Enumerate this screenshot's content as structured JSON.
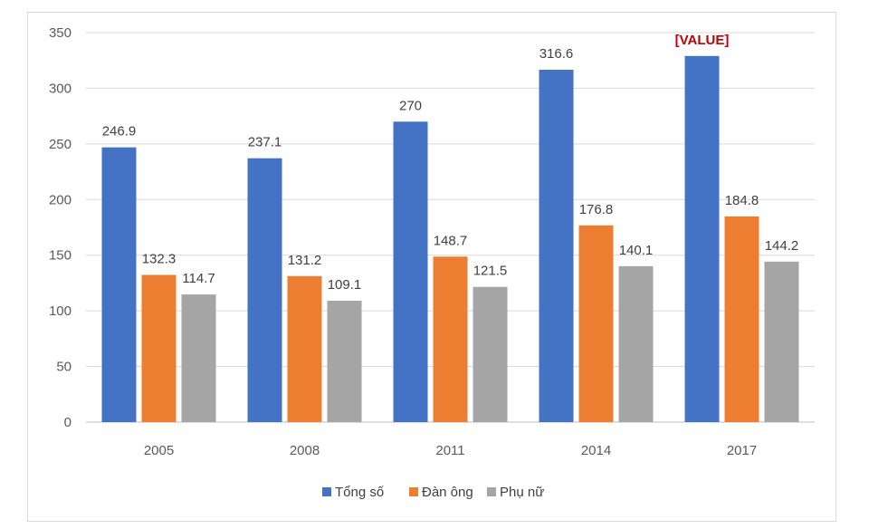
{
  "chart_data": {
    "type": "bar",
    "categories": [
      "2005",
      "2008",
      "2011",
      "2014",
      "2017"
    ],
    "series": [
      {
        "name": "Tổng số",
        "color": "#4472c4",
        "values": [
          246.9,
          237.1,
          270,
          316.6,
          329
        ],
        "labels": [
          "246.9",
          "237.1",
          "270",
          "316.6",
          "[VALUE]"
        ]
      },
      {
        "name": "Đàn ông",
        "color": "#ed7d31",
        "values": [
          132.3,
          131.2,
          148.7,
          176.8,
          184.8
        ],
        "labels": [
          "132.3",
          "131.2",
          "148.7",
          "176.8",
          "184.8"
        ]
      },
      {
        "name": "Phụ nữ",
        "color": "#a5a5a5",
        "values": [
          114.7,
          109.1,
          121.5,
          140.1,
          144.2
        ],
        "labels": [
          "114.7",
          "109.1",
          "121.5",
          "140.1",
          "144.2"
        ]
      }
    ],
    "ylim": [
      0,
      350
    ],
    "yticks": [
      0,
      50,
      100,
      150,
      200,
      250,
      300,
      350
    ],
    "grid": true,
    "legend": "bottom-center",
    "highlight_label_color": "#c00000"
  }
}
